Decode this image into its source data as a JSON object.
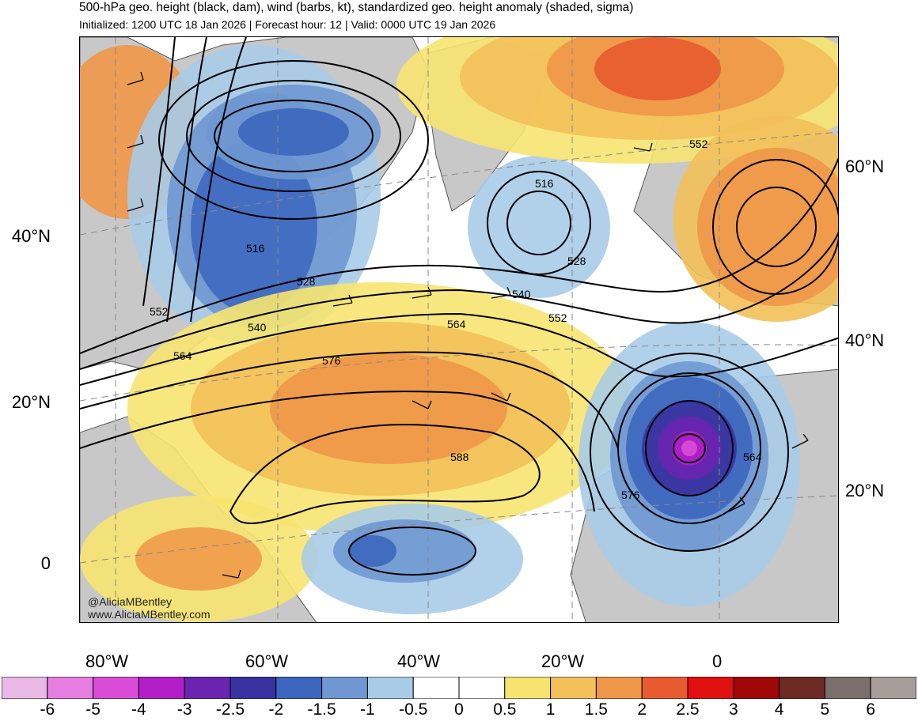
{
  "header": {
    "title": "500-hPa geo. height (black, dam), wind (barbs, kt), standardized geo. height anomaly (shaded, sigma)",
    "subtitle": "Initialized: 1200 UTC 18 Jan 2026 | Forecast hour: 12 | Valid: 0000 UTC 19 Jan 2026"
  },
  "map": {
    "lat_labels_left": [
      "40°N",
      "20°N",
      "0"
    ],
    "lat_labels_right": [
      "60°N",
      "40°N",
      "20°N"
    ],
    "lon_labels": [
      "80°W",
      "60°W",
      "40°W",
      "20°W",
      "0"
    ],
    "contour_labels": [
      "516",
      "516",
      "528",
      "528",
      "540",
      "540",
      "552",
      "552",
      "552",
      "564",
      "564",
      "564",
      "576",
      "576",
      "588"
    ],
    "credits": [
      "@AliciaMBentley",
      "www.AliciaMBentley.com"
    ],
    "colors": {
      "land": "#c8c8c8",
      "ocean": "#ffffff",
      "coast": "#555555",
      "contour": "#000000"
    }
  },
  "colorbar": {
    "labels": [
      "-6",
      "-5",
      "-4",
      "-3",
      "-2.5",
      "-2",
      "-1.5",
      "-1",
      "-0.5",
      "0",
      "0.5",
      "1",
      "1.5",
      "2",
      "2.5",
      "3",
      "4",
      "5",
      "6"
    ],
    "colors": [
      "#e9b8e6",
      "#e57ee0",
      "#d94cd6",
      "#b21fc9",
      "#6a24b0",
      "#3a32a0",
      "#3c66bd",
      "#6f98d2",
      "#a9cbe8",
      "#ffffff",
      "#ffffff",
      "#f7e470",
      "#f3c05a",
      "#ef9748",
      "#e85a2f",
      "#e01010",
      "#a00808",
      "#6e2a24",
      "#7b6f6d",
      "#a69d9b"
    ]
  }
}
